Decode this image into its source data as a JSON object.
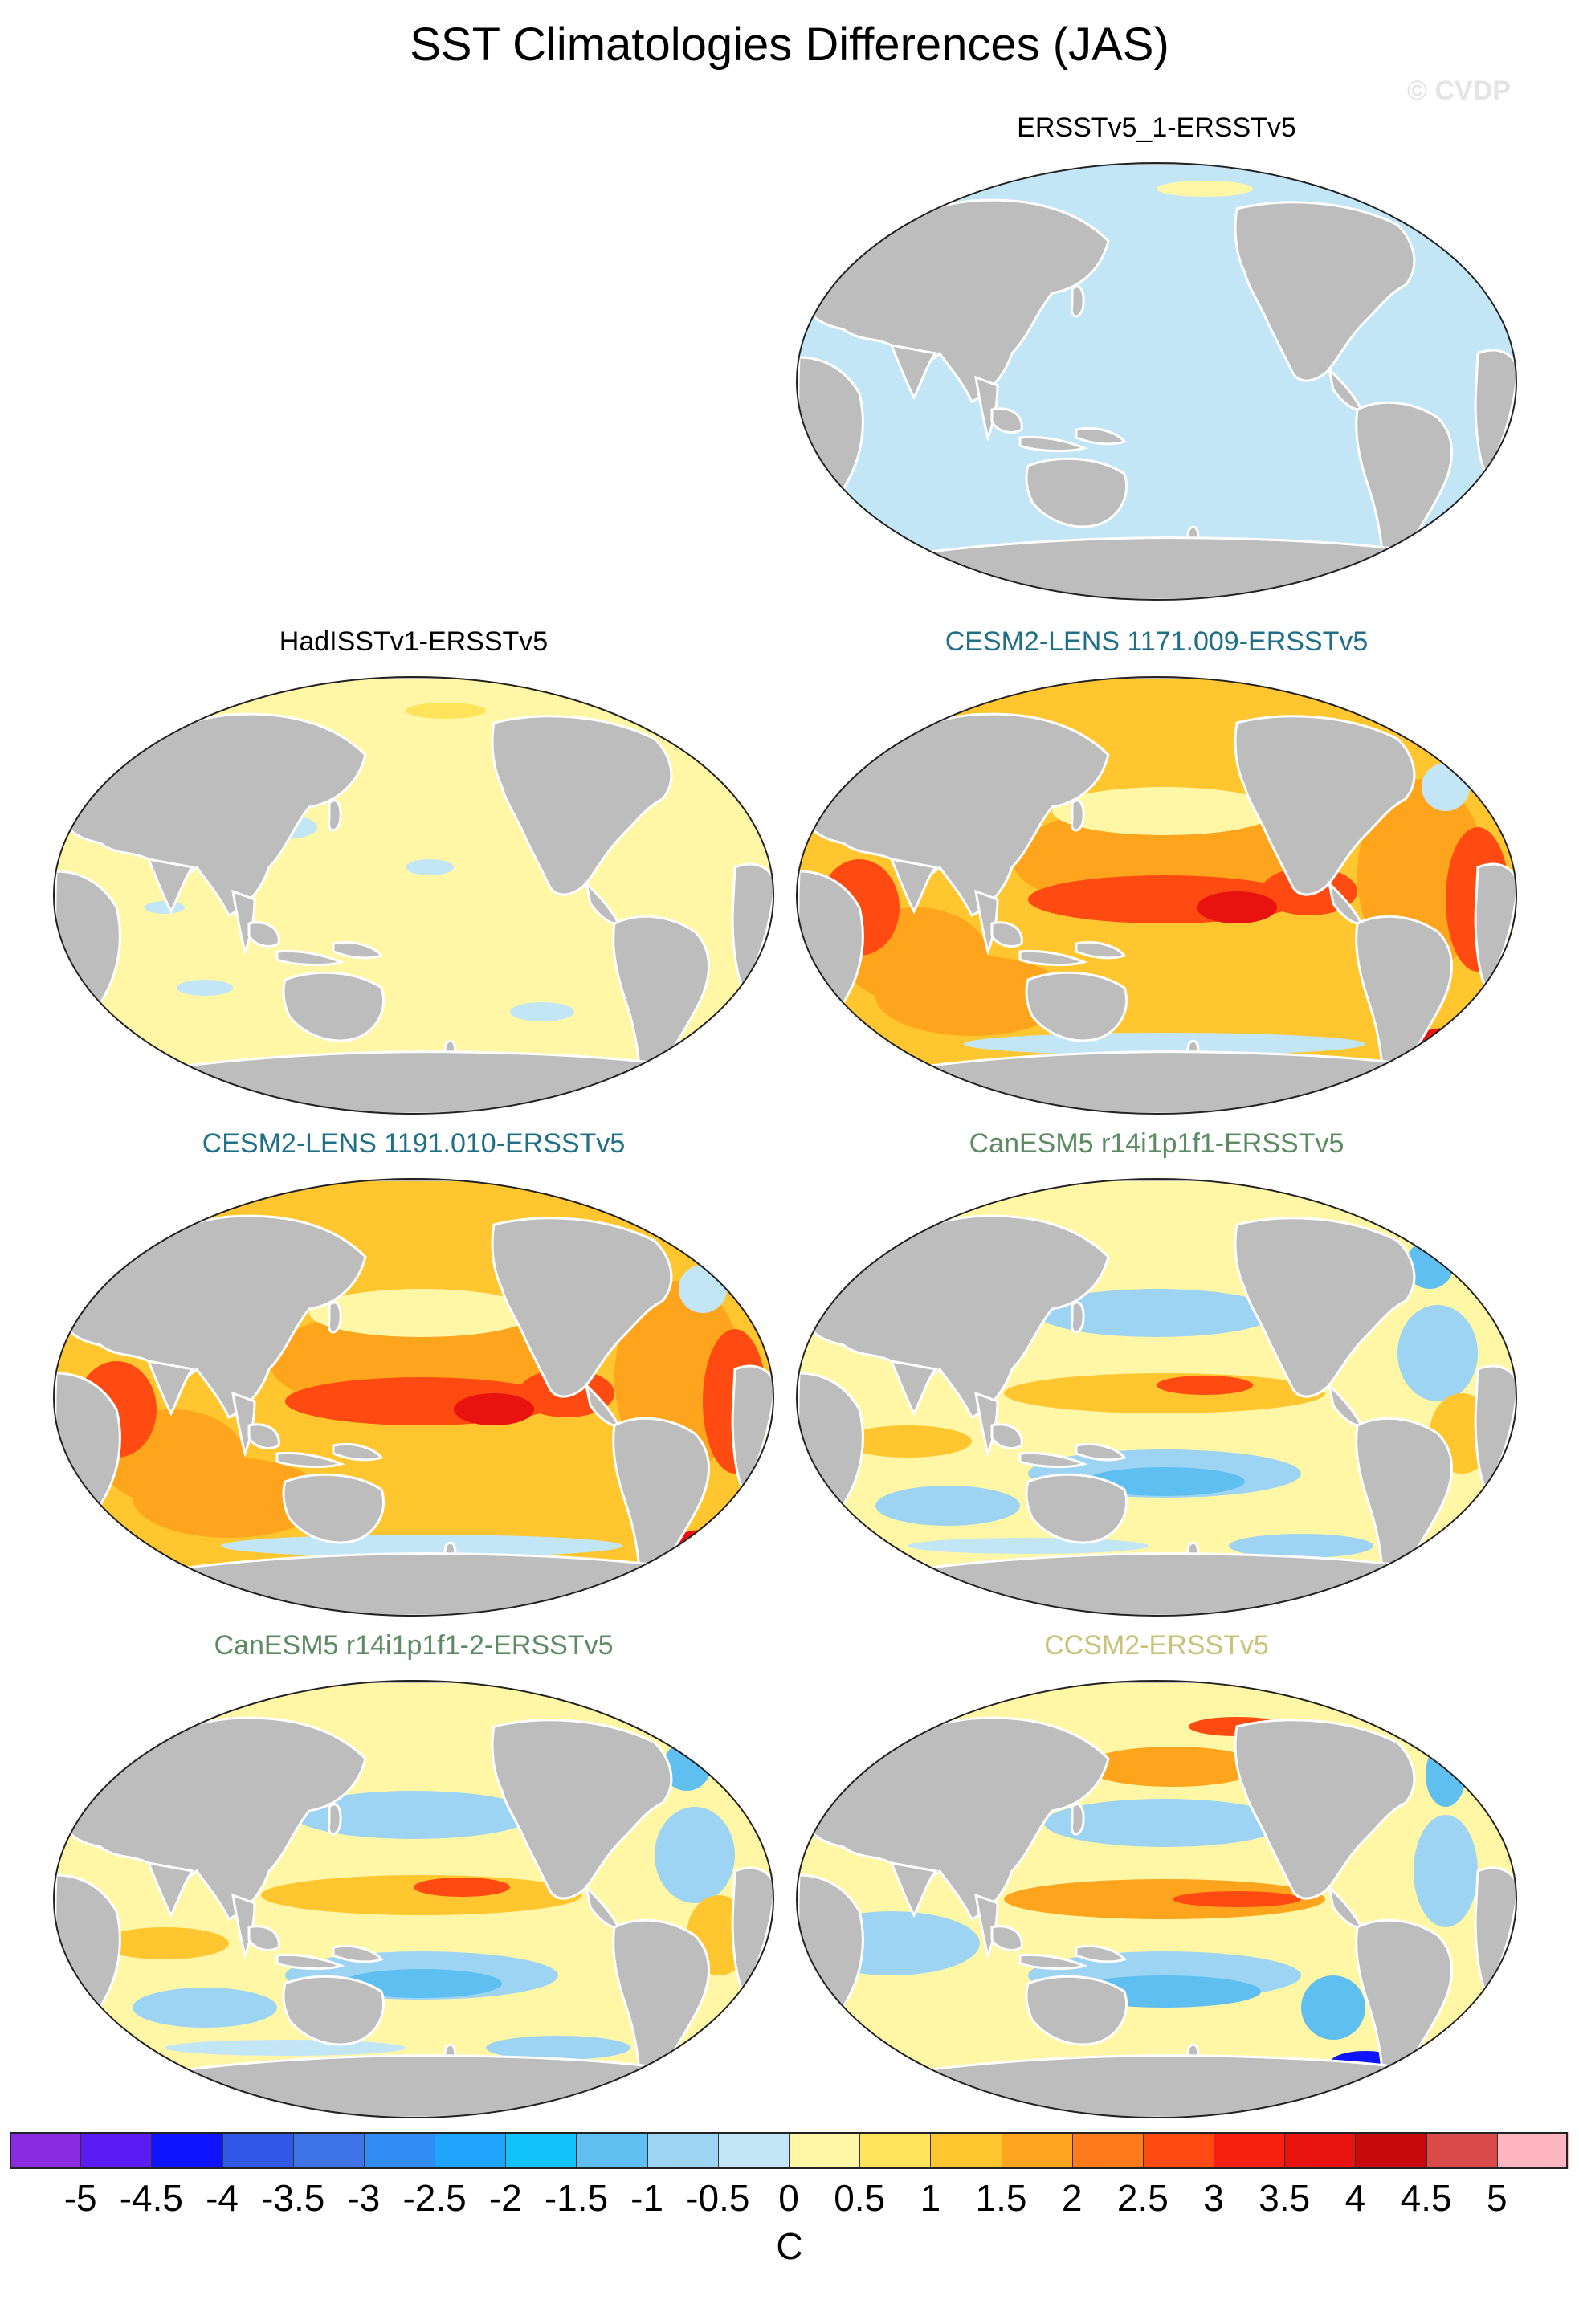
{
  "title": "SST Climatologies Differences (JAS)",
  "watermark": "© CVDP",
  "units": "C",
  "panels": [
    {
      "label": "ERSSTv5_1-ERSSTv5",
      "color": "#000000",
      "pattern": "light-blue"
    },
    {
      "label": "HadISSTv1-ERSSTv5",
      "color": "#000000",
      "pattern": "light-yellow"
    },
    {
      "label": "CESM2-LENS 1171.009-ERSSTv5",
      "color": "#1f6f86",
      "pattern": "warm"
    },
    {
      "label": "CESM2-LENS 1191.010-ERSSTv5",
      "color": "#1f6f86",
      "pattern": "warm"
    },
    {
      "label": "CanESM5 r14i1p1f1-ERSSTv5",
      "color": "#5e8a63",
      "pattern": "mixed"
    },
    {
      "label": "CanESM5 r14i1p1f1-2-ERSSTv5",
      "color": "#5e8a63",
      "pattern": "mixed"
    },
    {
      "label": "CCSM2-ERSSTv5",
      "color": "#c8c27a",
      "pattern": "mixed-cool"
    }
  ],
  "colorbar": {
    "levels": [
      "-5",
      "-4.5",
      "-4",
      "-3.5",
      "-3",
      "-2.5",
      "-2",
      "-1.5",
      "-1",
      "-0.5",
      "0",
      "0.5",
      "1",
      "1.5",
      "2",
      "2.5",
      "3",
      "3.5",
      "4",
      "4.5",
      "5"
    ],
    "colors": [
      "#8a2be2",
      "#5a1cf2",
      "#0f14ff",
      "#3058e6",
      "#3f74e8",
      "#2f8cf5",
      "#1ea4fb",
      "#13c1fb",
      "#5fbff0",
      "#9ed4f3",
      "#c3e6f7",
      "#fff7a6",
      "#ffe35a",
      "#ffc630",
      "#ffa51d",
      "#ff7a1a",
      "#ff4b12",
      "#f7200f",
      "#e8130f",
      "#c8090b",
      "#db4a4a",
      "#ffb6c0"
    ]
  },
  "colors": {
    "land": "#bdbdbd",
    "land_edge": "#ffffff",
    "map_border": "#222222"
  }
}
